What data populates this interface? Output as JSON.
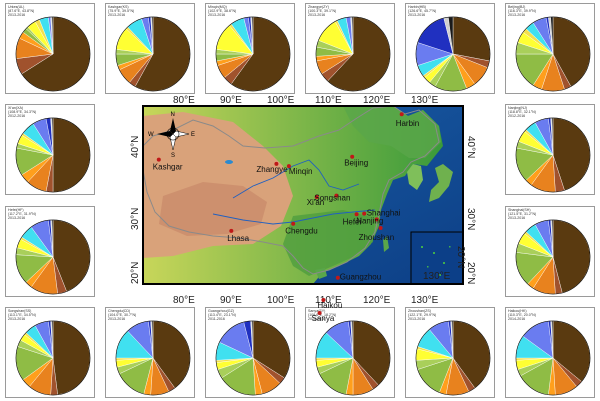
{
  "map": {
    "lon_ticks": [
      "80°E",
      "90°E",
      "100°E",
      "110°E",
      "120°E",
      "130°E"
    ],
    "lat_ticks_left": [
      "40°N",
      "30°N",
      "20°N"
    ],
    "lat_ticks_right": [
      "40°N",
      "30°N",
      "20°N"
    ],
    "inset_ticks": {
      "lon": "130°E",
      "lat": "20°N"
    },
    "compass": {
      "n": "N",
      "s": "S",
      "e": "E",
      "w": "W"
    },
    "cities": [
      {
        "name": "Harbin",
        "lon": 126.6,
        "lat": 45.8
      },
      {
        "name": "Beijing",
        "lon": 116.3,
        "lat": 39.9
      },
      {
        "name": "Kashgar",
        "lon": 76.0,
        "lat": 39.5
      },
      {
        "name": "Zhangye",
        "lon": 100.5,
        "lat": 38.9
      },
      {
        "name": "Minqin",
        "lon": 103.1,
        "lat": 38.6
      },
      {
        "name": "Xi'an",
        "lon": 108.9,
        "lat": 34.3
      },
      {
        "name": "Songshan",
        "lon": 113.0,
        "lat": 34.5
      },
      {
        "name": "Shanghai",
        "lon": 121.4,
        "lat": 31.2
      },
      {
        "name": "Hefei",
        "lon": 117.2,
        "lat": 31.9
      },
      {
        "name": "Nanjing",
        "lon": 118.8,
        "lat": 32.0
      },
      {
        "name": "Zhoushan",
        "lon": 122.2,
        "lat": 30.0
      },
      {
        "name": "Chengdu",
        "lon": 104.0,
        "lat": 30.6
      },
      {
        "name": "Lhasa",
        "lon": 91.1,
        "lat": 29.6
      },
      {
        "name": "Guangzhou",
        "lon": 113.3,
        "lat": 23.1
      },
      {
        "name": "Haikou",
        "lon": 110.3,
        "lat": 20.0
      },
      {
        "name": "Sanya",
        "lon": 109.5,
        "lat": 18.2
      }
    ]
  },
  "palette": [
    "#5a3a10",
    "#a0522d",
    "#e8821e",
    "#ff9f1c",
    "#8fbc45",
    "#a9cf5a",
    "#ffff33",
    "#f4e04d",
    "#40e0f0",
    "#6a7cf0",
    "#2030c0",
    "#d0d0d0",
    "#1a1a1a"
  ],
  "stations": [
    {
      "id": "urumqi",
      "label": [
        "Urkes(UL)",
        "(87.6°E, 43.8°N)",
        "2013-2016"
      ],
      "values": [
        66,
        7,
        9,
        3,
        2,
        1,
        4,
        2,
        4,
        1,
        0,
        0.5,
        0.5
      ]
    },
    {
      "id": "kashgar",
      "label": [
        "Kashgar(KS)",
        "(75.9°E, 39.5°N)",
        "2013-2016"
      ],
      "values": [
        58,
        3,
        7,
        2,
        5,
        2,
        10,
        1,
        7,
        3,
        1,
        0.5,
        0.5
      ]
    },
    {
      "id": "minqin",
      "label": [
        "Minqin(MQ)",
        "(102.9°E, 38.6°N)",
        "2013-2016"
      ],
      "values": [
        60,
        4,
        6,
        2,
        3,
        2,
        12,
        1,
        6,
        2,
        1,
        0.5,
        0.5
      ]
    },
    {
      "id": "zhangye",
      "label": [
        "Zhangye(ZY)",
        "(100.3°E, 39.1°N)",
        "2013-2016"
      ],
      "values": [
        62,
        4,
        6,
        2,
        4,
        3,
        11,
        1,
        4,
        2,
        0,
        0.5,
        0.5
      ]
    },
    {
      "id": "harbin",
      "label": [
        "Harbin(HB)",
        "(126.6°E, 45.7°N)",
        "2013-2016"
      ],
      "values": [
        28,
        3,
        9,
        4,
        14,
        3,
        3,
        1,
        5,
        10,
        16,
        2,
        2
      ]
    },
    {
      "id": "beijing",
      "label": [
        "Beijing(BJ)",
        "(116.3°E, 39.9°N)",
        "2013-2016"
      ],
      "values": [
        42,
        3,
        10,
        4,
        16,
        5,
        5,
        2,
        4,
        6,
        1,
        1,
        1
      ]
    },
    {
      "id": "xian",
      "label": [
        "Xi'an(XA)",
        "(108.9°E, 34.3°N)",
        "2012-2016"
      ],
      "values": [
        50,
        3,
        9,
        4,
        12,
        2,
        4,
        1,
        6,
        6,
        2,
        0.5,
        0.5
      ]
    },
    {
      "id": "nanjing",
      "label": [
        "Nanjing(NJ)",
        "(118.8°E, 32.1°N)",
        "2012-2016"
      ],
      "values": [
        45,
        4,
        11,
        3,
        15,
        3,
        5,
        1,
        5,
        6,
        1,
        0.5,
        0.5
      ]
    },
    {
      "id": "hefei",
      "label": [
        "Hefei(HF)",
        "(117.2°E, 31.9°N)",
        "2013-2016"
      ],
      "values": [
        44,
        4,
        12,
        3,
        13,
        3,
        4,
        1,
        6,
        8,
        1,
        0.5,
        0.5
      ]
    },
    {
      "id": "shanghai",
      "label": [
        "Shanghai(SH)",
        "(121.5°E, 31.2°N)",
        "2013-2016"
      ],
      "values": [
        46,
        3,
        10,
        3,
        15,
        4,
        5,
        1,
        5,
        6,
        1,
        0.5,
        0.5
      ]
    },
    {
      "id": "songshan",
      "label": [
        "Songshan(SS)",
        "(113.1°E, 34.5°N)",
        "2013-2016"
      ],
      "values": [
        48,
        3,
        10,
        4,
        15,
        3,
        3,
        1,
        5,
        6,
        1,
        0.5,
        0.5
      ]
    },
    {
      "id": "chengdu",
      "label": [
        "Chengdu(CD)",
        "(104.0°E, 30.7°N)",
        "2013-2016"
      ],
      "values": [
        40,
        3,
        8,
        3,
        14,
        3,
        3,
        1,
        13,
        10,
        1,
        0.5,
        0.5
      ]
    },
    {
      "id": "guangzhou",
      "label": [
        "Guangzhou(GZ)",
        "(113.4°E, 23.1°N)",
        "2011-2016"
      ],
      "values": [
        34,
        3,
        9,
        3,
        17,
        4,
        3,
        1,
        8,
        14,
        3,
        0.5,
        0.5
      ]
    },
    {
      "id": "sanya",
      "label": [
        "Sanya(SY)",
        "(109.6°E, 18.2°N)",
        "2014-2016"
      ],
      "values": [
        38,
        3,
        9,
        3,
        15,
        3,
        3,
        1,
        12,
        11,
        1,
        0.5,
        0.5
      ]
    },
    {
      "id": "zhoushan",
      "label": [
        "Zhoushan(ZS)",
        "(122.1°E, 29.9°N)",
        "2013-2016"
      ],
      "values": [
        40,
        3,
        10,
        3,
        14,
        4,
        5,
        1,
        9,
        9,
        1,
        0.5,
        0.5
      ]
    },
    {
      "id": "haikou",
      "label": [
        "Haikou(HK)",
        "(110.3°E, 20.0°N)",
        "2014-2016"
      ],
      "values": [
        36,
        3,
        10,
        3,
        15,
        3,
        4,
        1,
        10,
        13,
        1,
        0.5,
        0.5
      ]
    }
  ]
}
